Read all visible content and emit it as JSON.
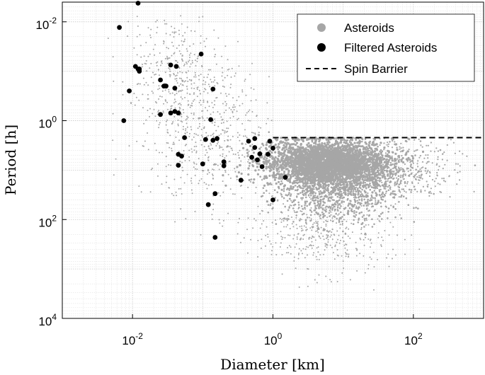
{
  "chart_data": {
    "type": "scatter",
    "title": "",
    "xlabel": "Diameter [km]",
    "ylabel": "Period [h]",
    "x_scale": "log",
    "y_scale": "log",
    "y_reversed": true,
    "xlim": [
      0.001,
      1000
    ],
    "ylim": [
      0.004,
      10000
    ],
    "grid": true,
    "legend_position": "top-right",
    "x_ticks": [
      {
        "value": 0.01,
        "base": "10",
        "exp": "-2"
      },
      {
        "value": 1,
        "base": "10",
        "exp": "0"
      },
      {
        "value": 100,
        "base": "10",
        "exp": "2"
      }
    ],
    "y_ticks": [
      {
        "value": 0.01,
        "base": "10",
        "exp": "-2"
      },
      {
        "value": 1,
        "base": "10",
        "exp": "0"
      },
      {
        "value": 100,
        "base": "10",
        "exp": "2"
      },
      {
        "value": 10000,
        "base": "10",
        "exp": "4"
      }
    ],
    "series": [
      {
        "name": "Asteroids",
        "color": "#a6a6a6",
        "marker": "dot-small",
        "values": []
      },
      {
        "name": "Filtered Asteroids",
        "color": "#000000",
        "marker": "dot",
        "x": [
          0.0065,
          0.012,
          0.0075,
          0.009,
          0.011,
          0.012,
          0.0125,
          0.025,
          0.028,
          0.03,
          0.035,
          0.04,
          0.042,
          0.035,
          0.025,
          0.04,
          0.045,
          0.095,
          0.14,
          0.13,
          0.14,
          0.11,
          0.16,
          0.055,
          0.045,
          0.05,
          0.045,
          0.1,
          0.2,
          0.2,
          0.35,
          0.55,
          0.55,
          0.65,
          0.9,
          0.6,
          0.85,
          0.7,
          1.0,
          1.5,
          0.5,
          0.45,
          1.0,
          0.15,
          0.12,
          0.15,
          0.0125
        ],
        "y": [
          0.013,
          0.0042,
          1.0,
          0.25,
          0.08,
          0.09,
          0.1,
          0.15,
          0.2,
          0.2,
          0.075,
          0.22,
          0.08,
          0.7,
          0.75,
          0.65,
          0.7,
          0.045,
          0.23,
          0.95,
          2.5,
          2.4,
          2.3,
          2.2,
          4.8,
          5.2,
          8.0,
          7.5,
          6.8,
          8.2,
          16.0,
          2.3,
          3.5,
          4.7,
          2.6,
          6.2,
          4.8,
          8.5,
          3.6,
          14.0,
          5.5,
          2.6,
          40.0,
          30.0,
          50.0,
          230.0,
          0.09
        ]
      },
      {
        "name": "Spin Barrier",
        "color": "#000000",
        "marker": "dashed-line",
        "x": [
          1.0,
          1000
        ],
        "y": [
          2.2,
          2.2
        ]
      }
    ]
  }
}
